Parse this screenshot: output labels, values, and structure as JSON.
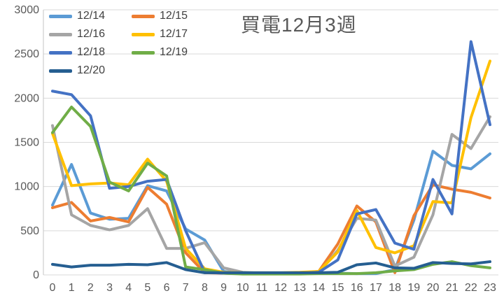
{
  "title": "買電12月3週",
  "colors": {
    "background": "#FFFFFF",
    "gridline": "#D9D9D9",
    "axis_line": "#C6C6C6",
    "tick_label": "#595959",
    "title": "#595959",
    "legend_label": "#404040"
  },
  "axes": {
    "y_ticks": [
      "0",
      "500",
      "1000",
      "1500",
      "2000",
      "2500",
      "3000"
    ],
    "x_ticks": [
      "0",
      "1",
      "2",
      "3",
      "4",
      "5",
      "6",
      "7",
      "8",
      "9",
      "10",
      "11",
      "12",
      "13",
      "14",
      "15",
      "16",
      "17",
      "18",
      "19",
      "20",
      "21",
      "22",
      "23"
    ]
  },
  "chart_data": {
    "type": "line",
    "title": "買電12月3週",
    "xlabel": "",
    "ylabel": "",
    "x": [
      0,
      1,
      2,
      3,
      4,
      5,
      6,
      7,
      8,
      9,
      10,
      11,
      12,
      13,
      14,
      15,
      16,
      17,
      18,
      19,
      20,
      21,
      22,
      23
    ],
    "ylim": [
      0,
      3000
    ],
    "ytick_step": 500,
    "grid": true,
    "legend_position": "top-left",
    "series": [
      {
        "name": "12/14",
        "color": "#5B9BD5",
        "values": [
          790,
          1250,
          700,
          630,
          640,
          1010,
          950,
          520,
          395,
          40,
          20,
          15,
          15,
          15,
          20,
          20,
          15,
          15,
          60,
          620,
          1400,
          1240,
          1200,
          1370
        ]
      },
      {
        "name": "12/15",
        "color": "#ED7D31",
        "values": [
          760,
          820,
          610,
          650,
          600,
          990,
          800,
          250,
          25,
          20,
          15,
          15,
          15,
          20,
          40,
          350,
          780,
          600,
          25,
          670,
          1020,
          970,
          935,
          870
        ]
      },
      {
        "name": "12/16",
        "color": "#A5A5A5",
        "values": [
          1690,
          680,
          560,
          510,
          560,
          750,
          300,
          300,
          365,
          80,
          30,
          20,
          20,
          20,
          25,
          280,
          640,
          620,
          100,
          200,
          680,
          1590,
          1430,
          1790
        ]
      },
      {
        "name": "12/17",
        "color": "#FFC000",
        "values": [
          1600,
          1010,
          1030,
          1040,
          1020,
          1310,
          1060,
          300,
          70,
          30,
          25,
          25,
          25,
          30,
          40,
          260,
          730,
          310,
          250,
          330,
          830,
          815,
          1780,
          2420
        ]
      },
      {
        "name": "12/18",
        "color": "#4472C4",
        "values": [
          2080,
          2040,
          1800,
          980,
          1000,
          1060,
          1080,
          500,
          30,
          20,
          15,
          15,
          15,
          20,
          30,
          170,
          690,
          740,
          360,
          290,
          1080,
          690,
          2640,
          1700
        ]
      },
      {
        "name": "12/19",
        "color": "#70AD47",
        "values": [
          1610,
          1900,
          1680,
          1050,
          950,
          1265,
          1120,
          90,
          60,
          20,
          10,
          10,
          10,
          10,
          15,
          15,
          15,
          25,
          45,
          60,
          120,
          150,
          105,
          80
        ]
      },
      {
        "name": "12/20",
        "color": "#255E91",
        "values": [
          120,
          90,
          110,
          110,
          120,
          115,
          140,
          60,
          25,
          25,
          25,
          25,
          25,
          25,
          25,
          30,
          115,
          135,
          80,
          75,
          140,
          130,
          125,
          150
        ]
      }
    ]
  }
}
